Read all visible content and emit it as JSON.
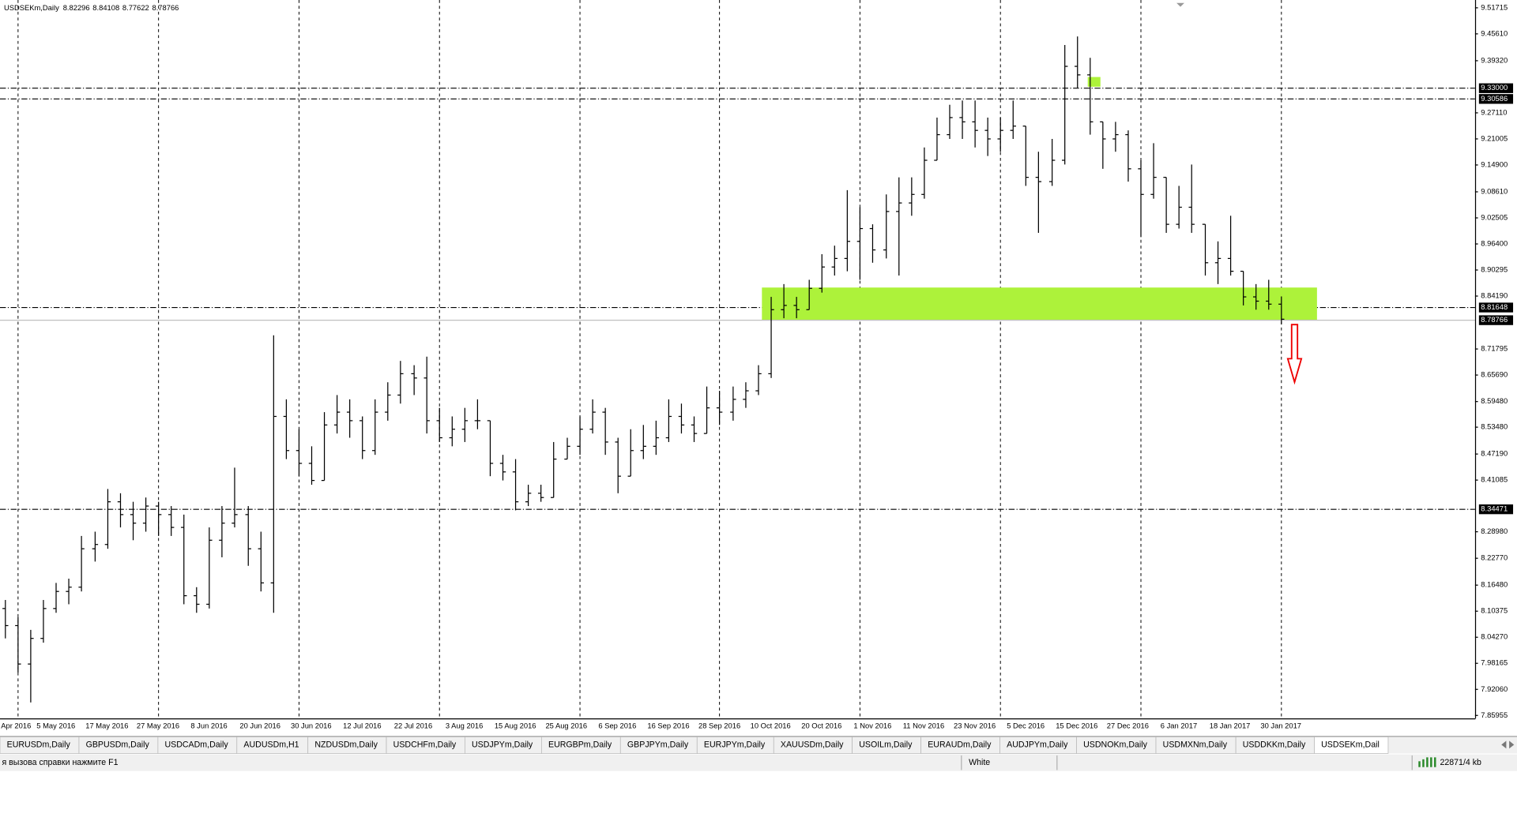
{
  "chart_data": {
    "type": "ohlc",
    "title": "USDSEKm,Daily",
    "color": "#000000",
    "categories": [
      "Apr 2016",
      null,
      null,
      null,
      "5 May 2016",
      null,
      null,
      null,
      "17 May 2016",
      null,
      null,
      null,
      "27 May 2016",
      null,
      null,
      null,
      "8 Jun 2016",
      null,
      null,
      null,
      "20 Jun 2016",
      null,
      null,
      null,
      "30 Jun 2016",
      null,
      null,
      null,
      "12 Jul 2016",
      null,
      null,
      null,
      "22 Jul 2016",
      null,
      null,
      null,
      "3 Aug 2016",
      null,
      null,
      null,
      "15 Aug 2016",
      null,
      null,
      null,
      "25 Aug 2016",
      null,
      null,
      null,
      "6 Sep 2016",
      null,
      null,
      null,
      "16 Sep 2016",
      null,
      null,
      null,
      "28 Sep 2016",
      null,
      null,
      null,
      "10 Oct 2016",
      null,
      null,
      null,
      "20 Oct 2016",
      null,
      null,
      null,
      "1 Nov 2016",
      null,
      null,
      null,
      "11 Nov 2016",
      null,
      null,
      null,
      "23 Nov 2016",
      null,
      null,
      null,
      "5 Dec 2016",
      null,
      null,
      null,
      "15 Dec 2016",
      null,
      null,
      null,
      "27 Dec 2016",
      null,
      null,
      null,
      "6 Jan 2017",
      null,
      null,
      null,
      "18 Jan 2017",
      null,
      null,
      null,
      "30 Jan 2017"
    ],
    "open": [
      8.11,
      8.07,
      7.98,
      8.04,
      8.11,
      8.15,
      8.16,
      8.25,
      8.26,
      8.36,
      8.33,
      8.31,
      8.35,
      8.33,
      8.3,
      8.14,
      8.12,
      8.27,
      8.31,
      8.33,
      8.25,
      8.17,
      8.56,
      8.48,
      8.45,
      8.41,
      8.54,
      8.57,
      8.55,
      8.48,
      8.57,
      8.61,
      8.66,
      8.65,
      8.55,
      8.51,
      8.53,
      8.55,
      8.55,
      8.45,
      8.43,
      8.36,
      8.38,
      8.37,
      8.46,
      8.49,
      8.53,
      8.57,
      8.5,
      8.42,
      8.48,
      8.49,
      8.51,
      8.56,
      8.54,
      8.52,
      8.58,
      8.57,
      8.6,
      8.62,
      8.66,
      8.81,
      8.82,
      8.81,
      8.86,
      8.91,
      8.93,
      8.97,
      9.0,
      8.95,
      9.04,
      9.06,
      9.08,
      9.16,
      9.22,
      9.26,
      9.25,
      9.23,
      9.21,
      9.23,
      9.24,
      9.12,
      9.11,
      9.16,
      9.38,
      9.36,
      9.25,
      9.21,
      9.22,
      9.14,
      9.08,
      9.12,
      9.01,
      9.05,
      9.01,
      8.92,
      8.93,
      8.9,
      8.84,
      8.83,
      8.82296
    ],
    "high": [
      8.13,
      8.09,
      8.06,
      8.13,
      8.17,
      8.18,
      8.28,
      8.29,
      8.39,
      8.38,
      8.36,
      8.37,
      8.36,
      8.35,
      8.33,
      8.16,
      8.3,
      8.35,
      8.44,
      8.35,
      8.29,
      8.75,
      8.6,
      8.53,
      8.49,
      8.57,
      8.61,
      8.6,
      8.56,
      8.6,
      8.64,
      8.69,
      8.68,
      8.7,
      8.58,
      8.56,
      8.58,
      8.6,
      8.55,
      8.47,
      8.46,
      8.4,
      8.4,
      8.5,
      8.51,
      8.56,
      8.6,
      8.58,
      8.51,
      8.53,
      8.54,
      8.55,
      8.6,
      8.59,
      8.56,
      8.63,
      8.62,
      8.63,
      8.64,
      8.68,
      8.84,
      8.87,
      8.84,
      8.88,
      8.94,
      8.96,
      9.09,
      9.05,
      9.01,
      9.08,
      9.12,
      9.12,
      9.19,
      9.26,
      9.29,
      9.3,
      9.3,
      9.26,
      9.26,
      9.3,
      9.24,
      9.18,
      9.21,
      9.43,
      9.45,
      9.4,
      9.25,
      9.25,
      9.23,
      9.16,
      9.2,
      9.12,
      9.1,
      9.15,
      9.01,
      8.97,
      9.03,
      8.9,
      8.87,
      8.88,
      8.84108
    ],
    "low": [
      8.04,
      7.96,
      7.89,
      8.03,
      8.1,
      8.12,
      8.15,
      8.22,
      8.25,
      8.3,
      8.27,
      8.29,
      8.28,
      8.28,
      8.12,
      8.1,
      8.11,
      8.23,
      8.3,
      8.21,
      8.15,
      8.1,
      8.46,
      8.42,
      8.4,
      8.41,
      8.52,
      8.51,
      8.46,
      8.47,
      8.55,
      8.59,
      8.61,
      8.52,
      8.5,
      8.49,
      8.5,
      8.53,
      8.42,
      8.41,
      8.34,
      8.35,
      8.36,
      8.37,
      8.46,
      8.47,
      8.52,
      8.47,
      8.38,
      8.42,
      8.46,
      8.47,
      8.5,
      8.52,
      8.5,
      8.52,
      8.54,
      8.55,
      8.58,
      8.61,
      8.65,
      8.79,
      8.79,
      8.81,
      8.85,
      8.89,
      8.9,
      8.88,
      8.92,
      8.93,
      8.89,
      9.03,
      9.07,
      9.16,
      9.21,
      9.21,
      9.19,
      9.17,
      9.18,
      9.21,
      9.1,
      8.99,
      9.1,
      9.15,
      9.33,
      9.22,
      9.14,
      9.18,
      9.11,
      8.98,
      9.07,
      8.99,
      9.0,
      8.99,
      8.89,
      8.87,
      8.89,
      8.82,
      8.81,
      8.81,
      8.77622
    ],
    "close": [
      8.07,
      7.98,
      8.04,
      8.11,
      8.15,
      8.16,
      8.25,
      8.26,
      8.36,
      8.33,
      8.31,
      8.35,
      8.33,
      8.3,
      8.14,
      8.12,
      8.27,
      8.31,
      8.33,
      8.25,
      8.17,
      8.56,
      8.48,
      8.45,
      8.41,
      8.54,
      8.57,
      8.55,
      8.48,
      8.57,
      8.61,
      8.66,
      8.65,
      8.55,
      8.51,
      8.53,
      8.55,
      8.55,
      8.45,
      8.43,
      8.36,
      8.38,
      8.37,
      8.46,
      8.49,
      8.53,
      8.57,
      8.5,
      8.42,
      8.48,
      8.49,
      8.51,
      8.56,
      8.54,
      8.52,
      8.58,
      8.57,
      8.6,
      8.62,
      8.66,
      8.81,
      8.82,
      8.81,
      8.86,
      8.91,
      8.93,
      8.97,
      9.0,
      8.95,
      9.04,
      9.06,
      9.08,
      9.16,
      9.22,
      9.26,
      9.25,
      9.23,
      9.21,
      9.23,
      9.24,
      9.12,
      9.11,
      9.16,
      9.38,
      9.36,
      9.25,
      9.21,
      9.22,
      9.14,
      9.08,
      9.12,
      9.01,
      9.05,
      9.01,
      8.92,
      8.93,
      8.9,
      8.84,
      8.83,
      8.82296,
      8.78766
    ],
    "ylim": [
      7.85955,
      9.51715
    ],
    "yticks": [
      9.51715,
      {
        "value": 9.4561,
        "label": "9.45610"
      },
      {
        "value": 9.3932,
        "label": "9.39320"
      },
      {
        "value": 9.2711,
        "label": "9.27110"
      },
      9.21005,
      {
        "value": 9.149,
        "label": "9.14900"
      },
      {
        "value": 9.0861,
        "label": "9.08610"
      },
      9.02505,
      {
        "value": 8.964,
        "label": "8.96400"
      },
      8.90295,
      {
        "value": 8.8419,
        "label": "8.84190"
      },
      8.71795,
      {
        "value": 8.6569,
        "label": "8.65690"
      },
      {
        "value": 8.5948,
        "label": "8.59480"
      },
      {
        "value": 8.5348,
        "label": "8.53480"
      },
      {
        "value": 8.4719,
        "label": "8.47190"
      },
      8.41085,
      {
        "value": 8.2898,
        "label": "8.28980"
      },
      {
        "value": 8.2277,
        "label": "8.22770"
      },
      {
        "value": 8.1648,
        "label": "8.16480"
      },
      8.10375,
      {
        "value": 8.0427,
        "label": "8.04270"
      },
      7.98165,
      {
        "value": 7.9206,
        "label": "7.92060"
      },
      7.85955
    ],
    "hlines": [
      {
        "value": 9.33,
        "label": "9.33000"
      },
      9.30586,
      8.81648,
      8.34471
    ],
    "grid": true
  },
  "tabs": [
    "EURUSDm,Daily",
    "GBPUSDm,Daily",
    "USDCADm,Daily",
    "AUDUSDm,H1",
    "NZDUSDm,Daily",
    "USDCHFm,Daily",
    "USDJPYm,Daily",
    "EURGBPm,Daily",
    "GBPJPYm,Daily",
    "EURJPYm,Daily",
    "XAUUSDm,Daily",
    "USOILm,Daily",
    "EURAUDm,Daily",
    "AUDJPYm,Daily",
    "USDNOKm,Daily",
    "USDMXNm,Daily",
    "USDDKKm,Daily",
    "USDSEKm,Dail"
  ],
  "status_bar": {
    "help": "я вызова справки нажмите F1",
    "template": "White",
    "memory": "22871/4 kb"
  }
}
